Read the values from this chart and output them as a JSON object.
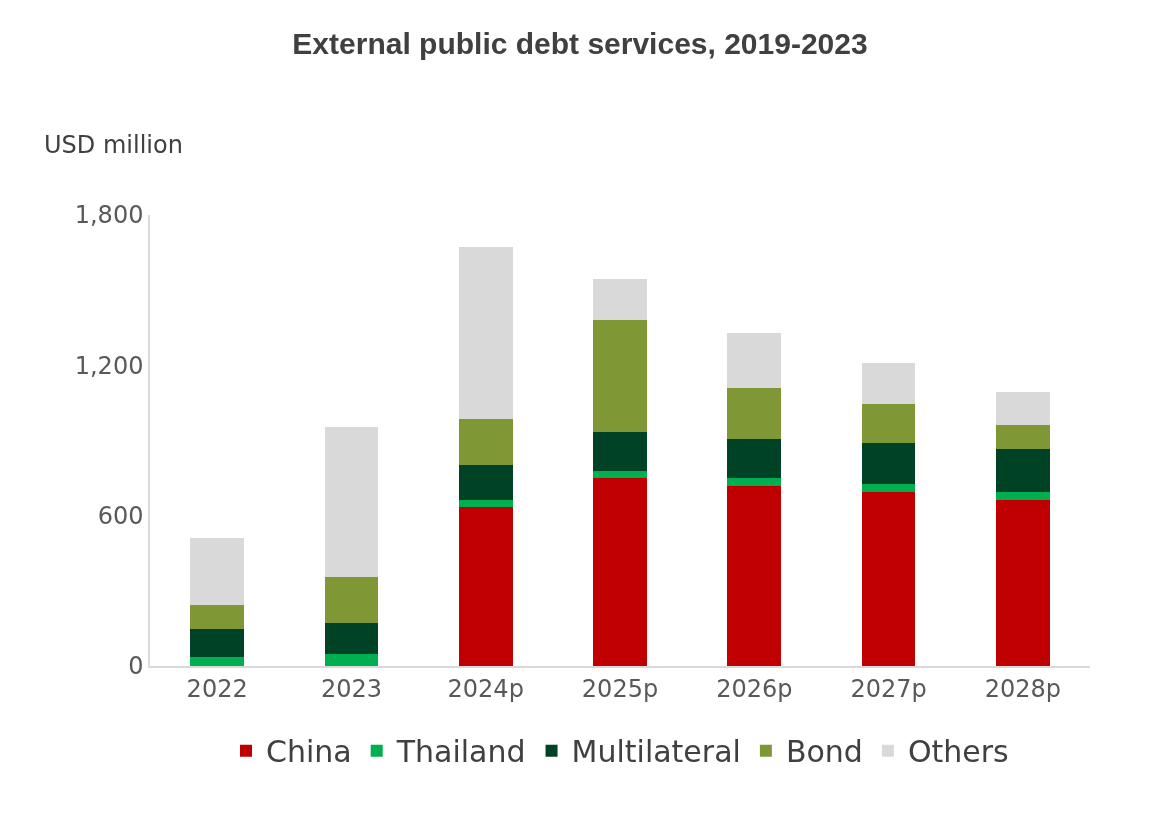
{
  "chart_data": {
    "type": "bar",
    "title": "External public debt services, 2019-2023",
    "ylabel": "USD million",
    "categories": [
      "2022",
      "2023",
      "2024p",
      "2025p",
      "2026p",
      "2027p",
      "2028p"
    ],
    "stacked": true,
    "series": [
      {
        "name": "China",
        "color": "#c00000",
        "values": [
          0,
          0,
          634,
          749,
          717,
          693,
          663
        ]
      },
      {
        "name": "Thailand",
        "color": "#00b050",
        "values": [
          36,
          47,
          27,
          31,
          32,
          33,
          32
        ]
      },
      {
        "name": "Multilateral",
        "color": "#004225",
        "values": [
          112,
          123,
          141,
          155,
          157,
          166,
          172
        ]
      },
      {
        "name": "Bond",
        "color": "#7f9734",
        "values": [
          94,
          187,
          184,
          445,
          205,
          154,
          96
        ]
      },
      {
        "name": "Others",
        "color": "#d9d9d9",
        "values": [
          267,
          596,
          687,
          166,
          217,
          162,
          132
        ]
      }
    ],
    "ylim": [
      0,
      1800
    ],
    "yticks": [
      0,
      {
        "value": 600,
        "label": "600"
      },
      {
        "value": 1200,
        "label": "1,200"
      },
      {
        "value": 1800,
        "label": "1,800"
      }
    ],
    "grid": false,
    "legend": "bottom"
  }
}
